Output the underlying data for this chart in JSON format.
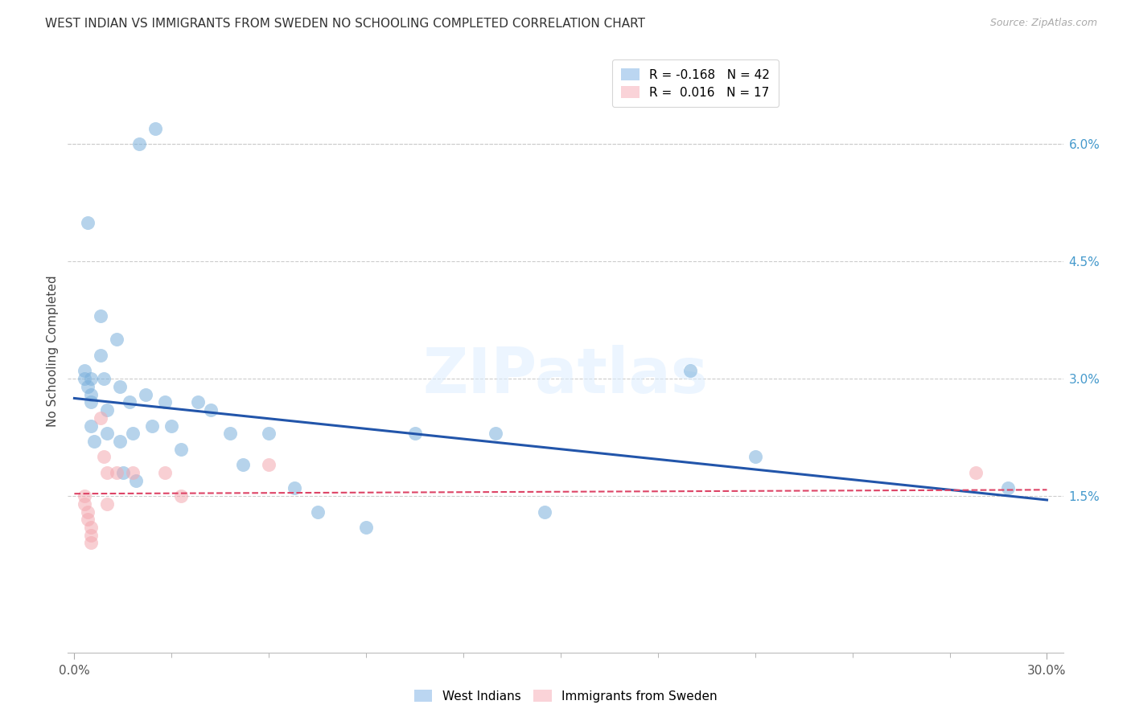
{
  "title": "WEST INDIAN VS IMMIGRANTS FROM SWEDEN NO SCHOOLING COMPLETED CORRELATION CHART",
  "source": "Source: ZipAtlas.com",
  "ylabel": "No Schooling Completed",
  "xlim": [
    -0.002,
    0.305
  ],
  "ylim": [
    -0.005,
    0.072
  ],
  "xticks_major": [
    0.0,
    0.3
  ],
  "xticks_minor": [
    0.03,
    0.06,
    0.09,
    0.12,
    0.15,
    0.18,
    0.21,
    0.24,
    0.27
  ],
  "xticklabels_major": [
    "0.0%",
    "30.0%"
  ],
  "right_yticks": [
    0.015,
    0.03,
    0.045,
    0.06
  ],
  "right_yticklabels": [
    "1.5%",
    "3.0%",
    "4.5%",
    "6.0%"
  ],
  "grid_color": "#cccccc",
  "background_color": "#ffffff",
  "blue_color": "#7ab0dc",
  "pink_color": "#f4a8b0",
  "blue_fill_color": "#aaccee",
  "pink_fill_color": "#f9c9cf",
  "blue_line_color": "#2255aa",
  "pink_line_color": "#dd4466",
  "legend_blue_r": "-0.168",
  "legend_blue_n": "42",
  "legend_pink_r": "0.016",
  "legend_pink_n": "17",
  "legend_label_blue": "West Indians",
  "legend_label_pink": "Immigrants from Sweden",
  "watermark": "ZIPatlas",
  "blue_x": [
    0.02,
    0.025,
    0.003,
    0.003,
    0.004,
    0.005,
    0.005,
    0.005,
    0.005,
    0.006,
    0.008,
    0.008,
    0.009,
    0.01,
    0.01,
    0.013,
    0.014,
    0.014,
    0.015,
    0.017,
    0.018,
    0.019,
    0.022,
    0.024,
    0.028,
    0.03,
    0.033,
    0.038,
    0.042,
    0.048,
    0.052,
    0.06,
    0.068,
    0.075,
    0.09,
    0.105,
    0.13,
    0.145,
    0.19,
    0.21,
    0.288,
    0.004
  ],
  "blue_y": [
    0.06,
    0.062,
    0.031,
    0.03,
    0.029,
    0.03,
    0.028,
    0.027,
    0.024,
    0.022,
    0.038,
    0.033,
    0.03,
    0.026,
    0.023,
    0.035,
    0.029,
    0.022,
    0.018,
    0.027,
    0.023,
    0.017,
    0.028,
    0.024,
    0.027,
    0.024,
    0.021,
    0.027,
    0.026,
    0.023,
    0.019,
    0.023,
    0.016,
    0.013,
    0.011,
    0.023,
    0.023,
    0.013,
    0.031,
    0.02,
    0.016,
    0.05
  ],
  "pink_x": [
    0.003,
    0.003,
    0.004,
    0.004,
    0.005,
    0.005,
    0.005,
    0.008,
    0.009,
    0.01,
    0.01,
    0.013,
    0.018,
    0.028,
    0.033,
    0.06,
    0.278
  ],
  "pink_y": [
    0.015,
    0.014,
    0.013,
    0.012,
    0.011,
    0.01,
    0.009,
    0.025,
    0.02,
    0.018,
    0.014,
    0.018,
    0.018,
    0.018,
    0.015,
    0.019,
    0.018
  ],
  "blue_trend_x": [
    0.0,
    0.3
  ],
  "blue_trend_y": [
    0.0275,
    0.0145
  ],
  "pink_trend_x": [
    0.0,
    0.3
  ],
  "pink_trend_y": [
    0.0153,
    0.0158
  ]
}
